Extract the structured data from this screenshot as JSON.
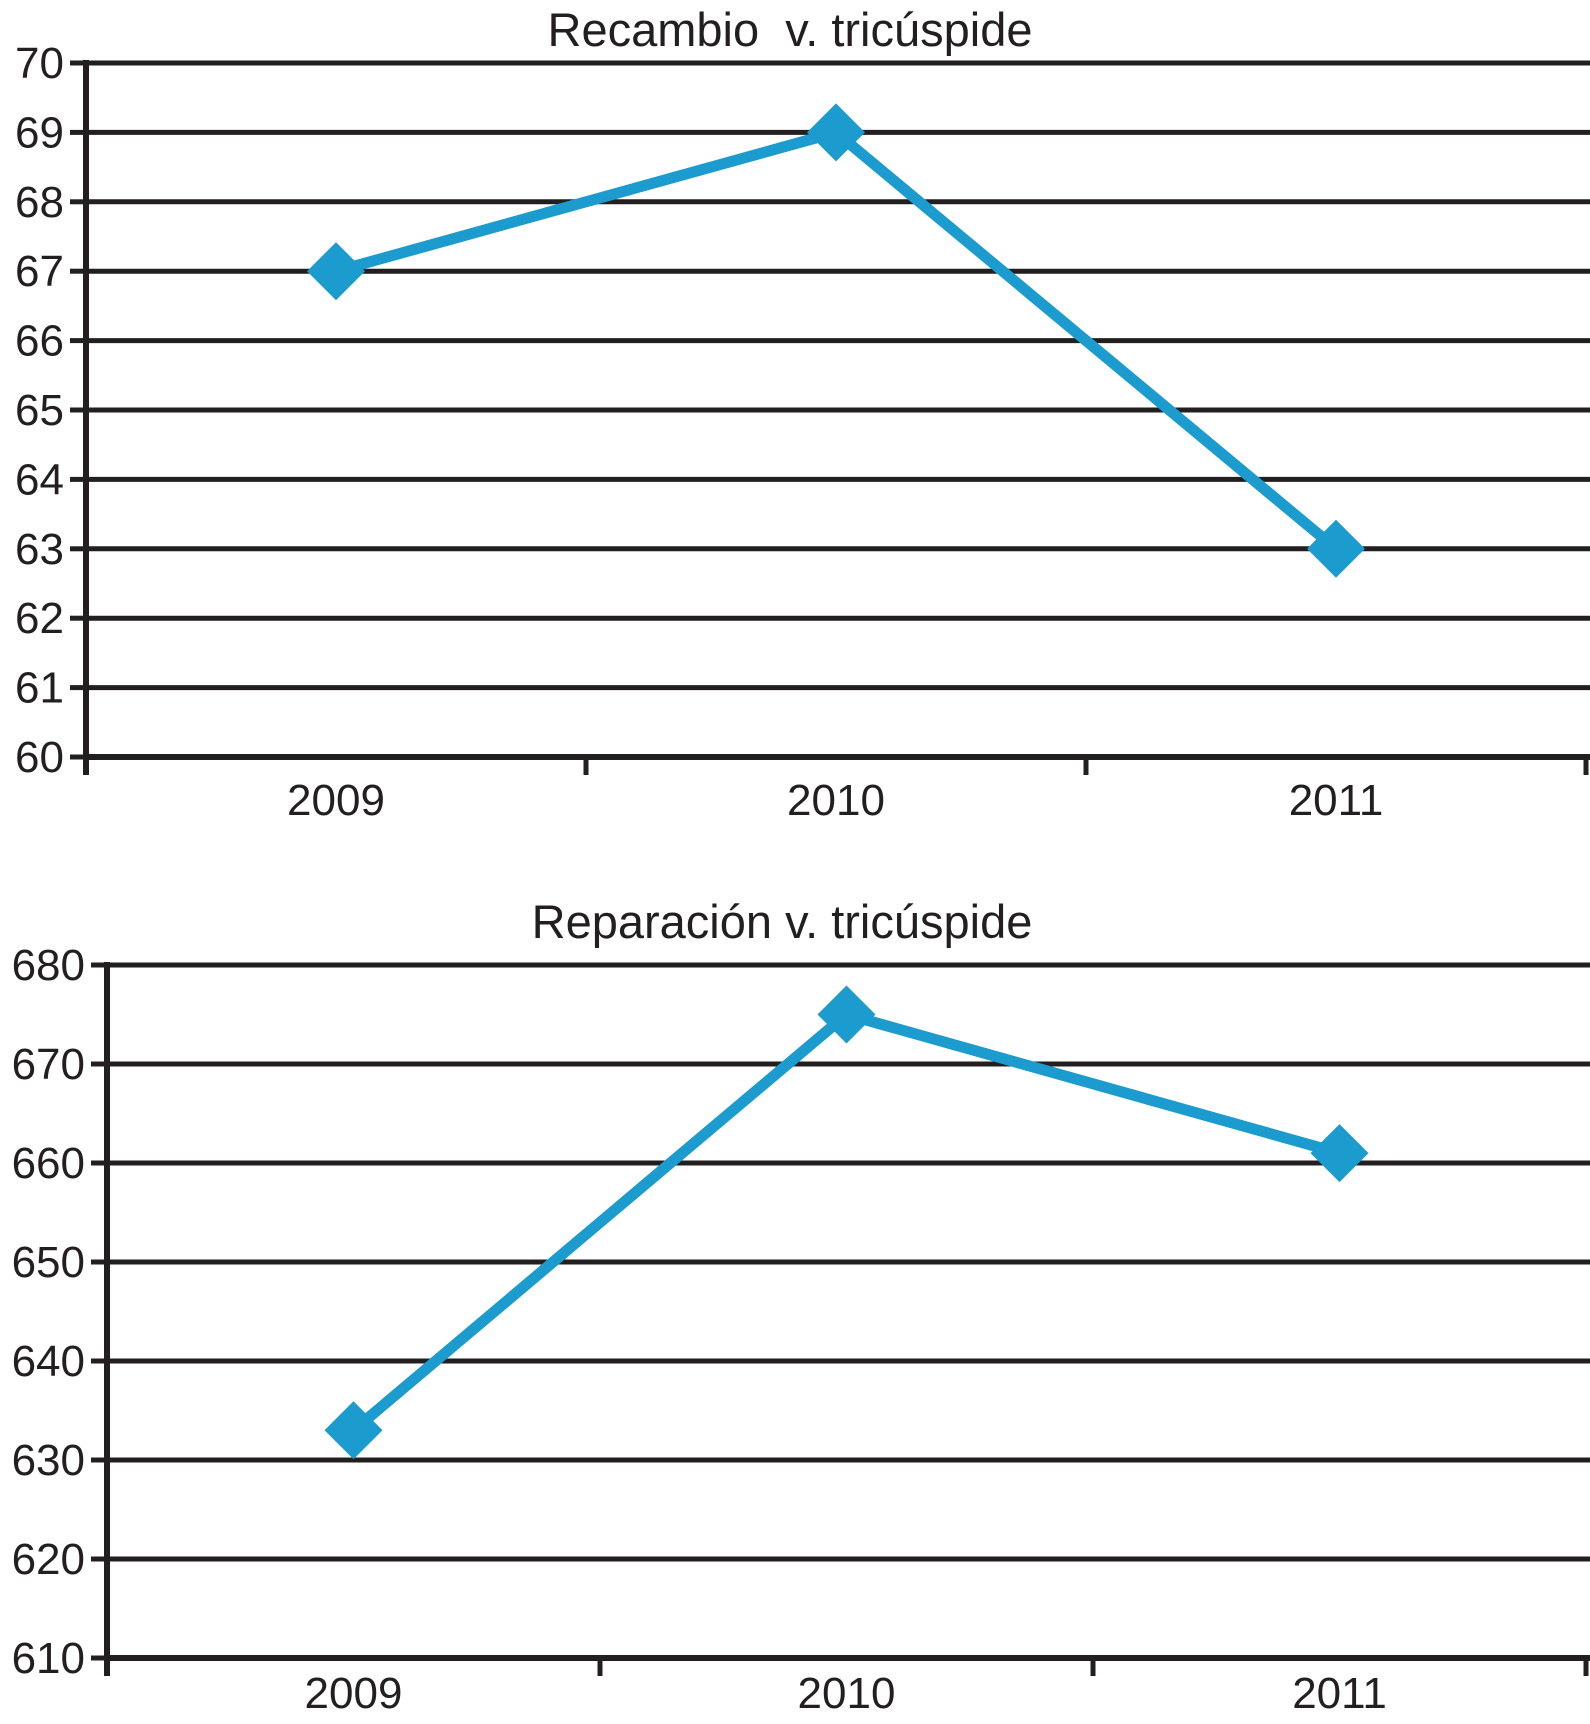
{
  "figure": {
    "background": "#ffffff"
  },
  "colors": {
    "series": "#1b9bce",
    "axis": "#231f20",
    "text": "#231f20"
  },
  "chart_data": [
    {
      "type": "line",
      "title": "Recambio  v. tricúspide",
      "categories": [
        "2009",
        "2010",
        "2011"
      ],
      "series": [
        {
          "name": "Recambio v. tricúspide",
          "values": [
            67,
            69,
            63
          ]
        }
      ],
      "ylim": [
        60,
        70
      ],
      "ytick_step": 1,
      "yticks": [
        60,
        61,
        62,
        63,
        64,
        65,
        66,
        67,
        68,
        69,
        70
      ],
      "xlabel": "",
      "ylabel": "",
      "grid": true,
      "legend_position": "none",
      "marker": "diamond"
    },
    {
      "type": "line",
      "title": "Reparación v. tricúspide",
      "categories": [
        "2009",
        "2010",
        "2011"
      ],
      "series": [
        {
          "name": "Reparación v. tricúspide",
          "values": [
            633,
            675,
            661
          ]
        }
      ],
      "ylim": [
        610,
        680
      ],
      "ytick_step": 10,
      "yticks": [
        610,
        620,
        630,
        640,
        650,
        660,
        670,
        680
      ],
      "xlabel": "",
      "ylabel": "",
      "grid": true,
      "legend_position": "none",
      "marker": "diamond"
    }
  ]
}
